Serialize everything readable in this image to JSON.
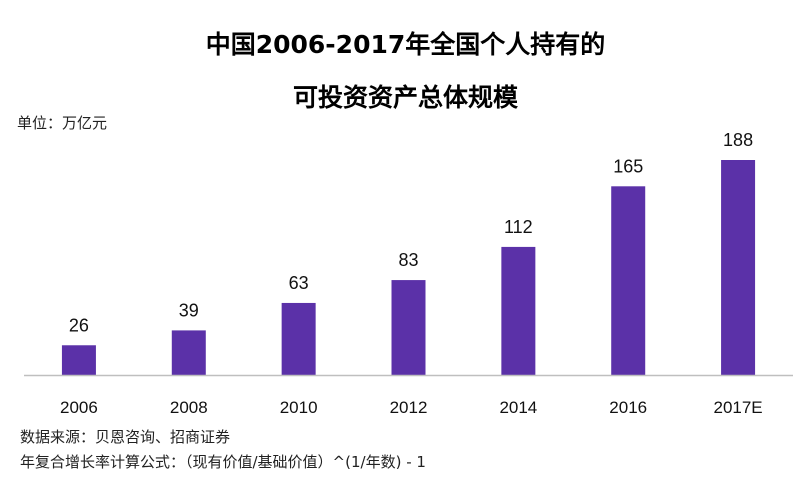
{
  "title_lines": [
    "中国2006-2017年全国个人持有的",
    "可投资资产总体规模"
  ],
  "unit_label": "单位：万亿元",
  "source_label": "数据来源：贝恩咨询、招商证券",
  "formula_label": "年复合增长率计算公式：（现有价值/基础价值）^(1/年数) - 1",
  "colors": {
    "bar": "#5b31a8",
    "axis": "#bfbfbf"
  },
  "chart_data": {
    "type": "bar",
    "title": "中国2006-2017年全国个人持有的可投资资产总体规模",
    "xlabel": "",
    "ylabel": "",
    "unit": "万亿元",
    "categories": [
      "2006",
      "2008",
      "2010",
      "2012",
      "2014",
      "2016",
      "2017E"
    ],
    "values": [
      26,
      39,
      63,
      83,
      112,
      165,
      188
    ],
    "ylim": [
      0,
      188
    ],
    "grid": false,
    "legend": "none",
    "data_labels": true
  }
}
